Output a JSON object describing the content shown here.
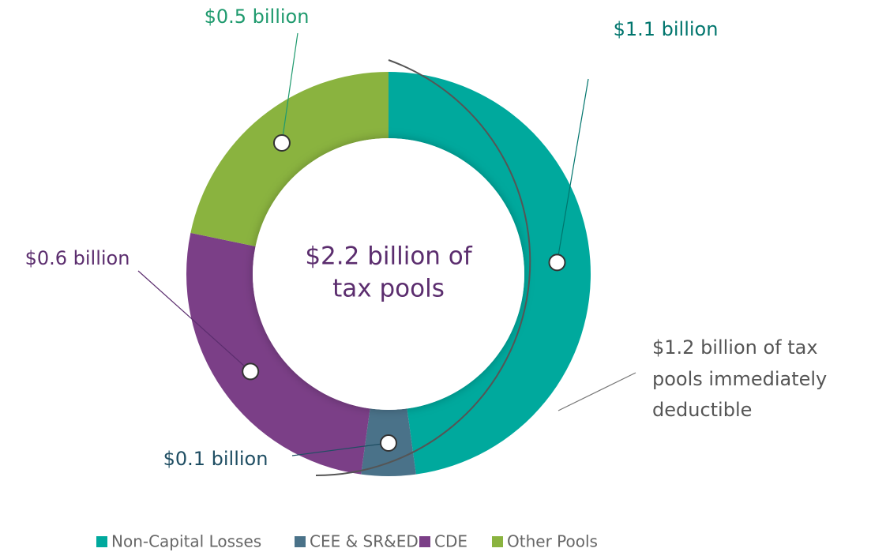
{
  "chart_data": {
    "type": "donut",
    "categories": [
      "Non-Capital Losses",
      "CEE & SR&ED",
      "CDE",
      "Other Pools"
    ],
    "values": [
      1.1,
      0.1,
      0.6,
      0.5
    ],
    "value_labels": [
      "$1.1 billion",
      "$0.1 billion",
      "$0.6 billion",
      "$0.5 billion"
    ],
    "colors": [
      "#00a99d",
      "#4a7289",
      "#7b3f87",
      "#8ab33f"
    ],
    "center_text": [
      "$2.2 billion of",
      "tax pools"
    ],
    "annotation": [
      "$1.2 billion of tax",
      "pools immediately",
      "deductible"
    ],
    "legend": "bottom"
  }
}
